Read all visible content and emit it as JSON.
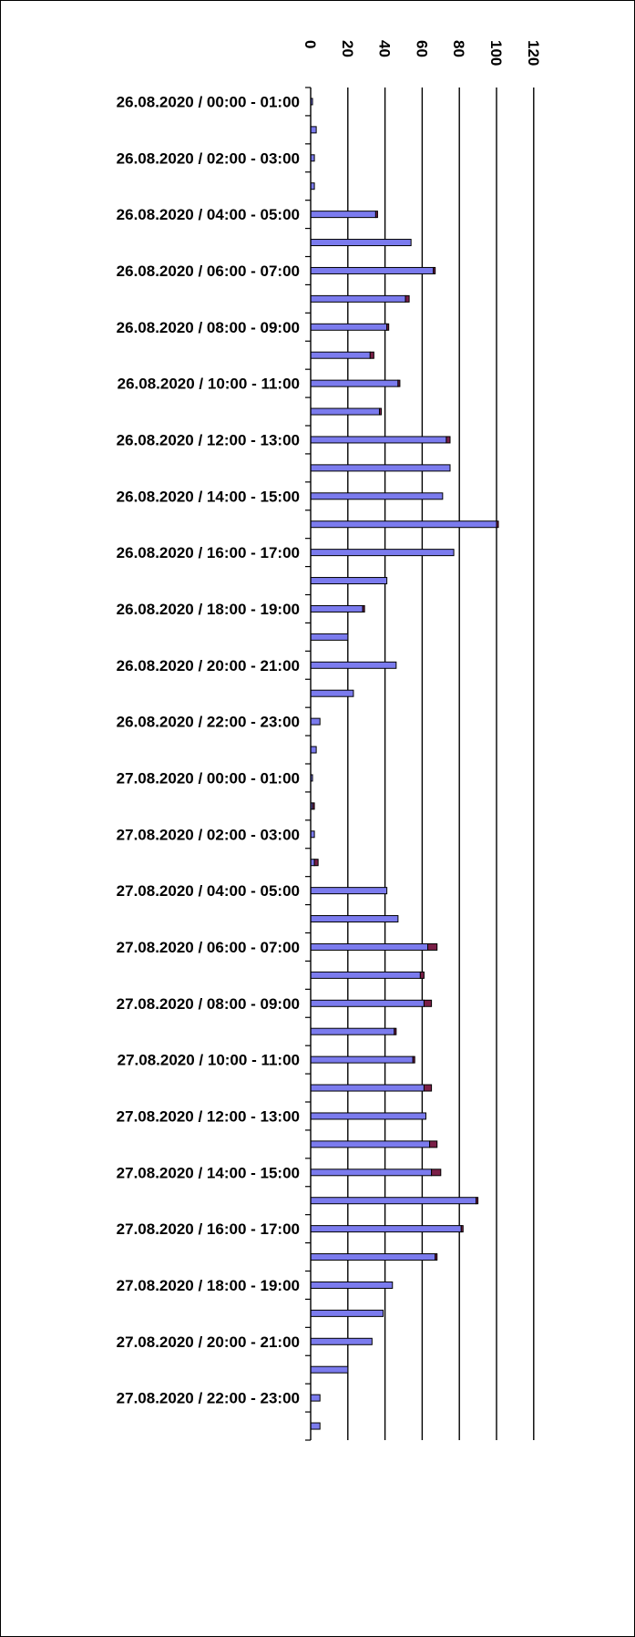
{
  "chart_data": {
    "type": "bar",
    "orientation": "horizontal",
    "stacked": true,
    "xlim": [
      0,
      120
    ],
    "x_ticks": [
      "0",
      "20",
      "40",
      "60",
      "80",
      "100",
      "120"
    ],
    "grid": true,
    "legend": "none",
    "series_colors": {
      "primary": "#7b7bee",
      "secondary": "#7a1f47"
    },
    "categories": [
      "26.08.2020 / 00:00 - 01:00",
      "",
      "26.08.2020 / 02:00 - 03:00",
      "",
      "26.08.2020 / 04:00 - 05:00",
      "",
      "26.08.2020 / 06:00 - 07:00",
      "",
      "26.08.2020 / 08:00 - 09:00",
      "",
      "26.08.2020 / 10:00 - 11:00",
      "",
      "26.08.2020 / 12:00 - 13:00",
      "",
      "26.08.2020 / 14:00 - 15:00",
      "",
      "26.08.2020 / 16:00 - 17:00",
      "",
      "26.08.2020 / 18:00 - 19:00",
      "",
      "26.08.2020 / 20:00 - 21:00",
      "",
      "26.08.2020 / 22:00 - 23:00",
      "",
      "27.08.2020 / 00:00 - 01:00",
      "",
      "27.08.2020 / 02:00 - 03:00",
      "",
      "27.08.2020 / 04:00 - 05:00",
      "",
      "27.08.2020 / 06:00 - 07:00",
      "",
      "27.08.2020 / 08:00 - 09:00",
      "",
      "27.08.2020 / 10:00 - 11:00",
      "",
      "27.08.2020 / 12:00 - 13:00",
      "",
      "27.08.2020 / 14:00 - 15:00",
      "",
      "27.08.2020 / 16:00 - 17:00",
      "",
      "27.08.2020 / 18:00 - 19:00",
      "",
      "27.08.2020 / 20:00 - 21:00",
      "",
      "27.08.2020 / 22:00 - 23:00",
      ""
    ],
    "series": [
      {
        "values": [
          1,
          3,
          2,
          2,
          35,
          54,
          66,
          51,
          41,
          32,
          47,
          37,
          73,
          75,
          71,
          100,
          77,
          41,
          28,
          20,
          46,
          23,
          5,
          3,
          1,
          1,
          2,
          2,
          41,
          47,
          63,
          59,
          61,
          45,
          55,
          61,
          62,
          64,
          65,
          89,
          81,
          67,
          44,
          39,
          33,
          20,
          5,
          5
        ]
      },
      {
        "values": [
          0,
          0,
          0,
          0,
          1,
          0,
          1,
          2,
          1,
          2,
          1,
          1,
          2,
          0,
          0,
          1,
          0,
          0,
          1,
          0,
          0,
          0,
          0,
          0,
          0,
          1,
          0,
          2,
          0,
          0,
          5,
          2,
          4,
          1,
          1,
          4,
          0,
          4,
          5,
          1,
          1,
          1,
          0,
          0,
          0,
          0,
          0,
          0
        ]
      }
    ]
  }
}
